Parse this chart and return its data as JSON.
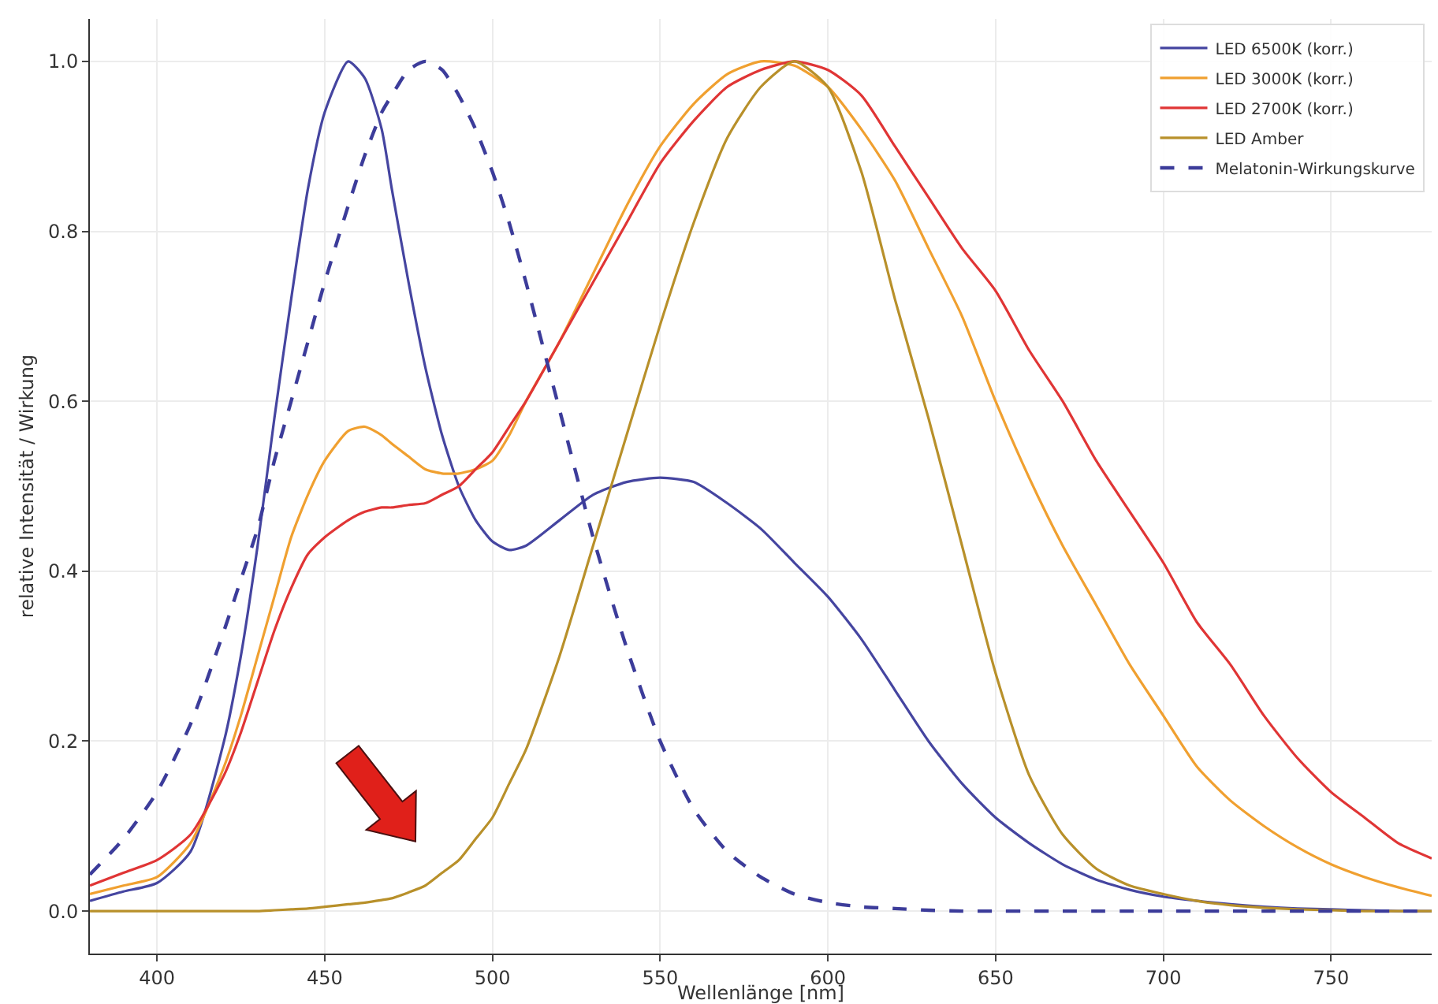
{
  "chart_data": {
    "type": "line",
    "xlabel": "Wellenlänge [nm]",
    "ylabel": "relative Intensität / Wirkung",
    "xlim": [
      380,
      780
    ],
    "ylim": [
      -0.05,
      1.05
    ],
    "xticks": [
      400,
      450,
      500,
      550,
      600,
      650,
      700,
      750
    ],
    "yticks": [
      {
        "value": 0,
        "label": "0.0"
      },
      {
        "value": 0.2,
        "label": "0.2"
      },
      {
        "value": 0.4,
        "label": "0.4"
      },
      {
        "value": 0.6,
        "label": "0.6"
      },
      {
        "value": 0.8,
        "label": "0.8"
      },
      {
        "value": 1,
        "label": "1.0"
      }
    ],
    "grid": true,
    "legend": "top right",
    "marker": "none",
    "x": [
      380,
      390,
      400,
      410,
      420,
      425,
      430,
      435,
      440,
      445,
      450,
      457,
      462,
      467,
      470,
      475,
      480,
      485,
      490,
      495,
      500,
      505,
      510,
      520,
      530,
      540,
      550,
      560,
      570,
      580,
      590,
      600,
      610,
      620,
      630,
      640,
      650,
      660,
      670,
      680,
      690,
      700,
      710,
      720,
      730,
      740,
      750,
      760,
      770,
      780
    ],
    "series": [
      {
        "name": "LED 6500K (korr.)",
        "color": "#4545a0",
        "line_style": "solid",
        "values": [
          0.012,
          0.023,
          0.033,
          0.07,
          0.2,
          0.3,
          0.43,
          0.58,
          0.72,
          0.85,
          0.94,
          1.0,
          0.98,
          0.92,
          0.85,
          0.74,
          0.64,
          0.56,
          0.5,
          0.46,
          0.435,
          0.425,
          0.43,
          0.46,
          0.49,
          0.505,
          0.51,
          0.505,
          0.48,
          0.45,
          0.41,
          0.37,
          0.32,
          0.26,
          0.2,
          0.15,
          0.11,
          0.08,
          0.055,
          0.037,
          0.025,
          0.017,
          0.012,
          0.008,
          0.005,
          0.003,
          0.002,
          0.001,
          0,
          0
        ]
      },
      {
        "name": "LED 3000K (korr.)",
        "color": "#f0a030",
        "line_style": "solid",
        "values": [
          0.02,
          0.03,
          0.04,
          0.08,
          0.17,
          0.23,
          0.3,
          0.37,
          0.44,
          0.49,
          0.53,
          0.565,
          0.57,
          0.56,
          0.55,
          0.535,
          0.52,
          0.515,
          0.515,
          0.52,
          0.53,
          0.56,
          0.6,
          0.67,
          0.75,
          0.83,
          0.9,
          0.95,
          0.985,
          1.0,
          0.995,
          0.97,
          0.92,
          0.86,
          0.78,
          0.7,
          0.6,
          0.51,
          0.43,
          0.36,
          0.29,
          0.23,
          0.17,
          0.13,
          0.1,
          0.075,
          0.055,
          0.04,
          0.028,
          0.018
        ]
      },
      {
        "name": "LED 2700K (korr.)",
        "color": "#e03535",
        "line_style": "solid",
        "values": [
          0.03,
          0.045,
          0.06,
          0.09,
          0.16,
          0.21,
          0.27,
          0.33,
          0.38,
          0.42,
          0.44,
          0.46,
          0.47,
          0.475,
          0.475,
          0.478,
          0.48,
          0.49,
          0.5,
          0.52,
          0.54,
          0.57,
          0.6,
          0.67,
          0.74,
          0.81,
          0.88,
          0.93,
          0.97,
          0.99,
          1.0,
          0.99,
          0.96,
          0.9,
          0.84,
          0.78,
          0.73,
          0.66,
          0.6,
          0.53,
          0.47,
          0.41,
          0.34,
          0.29,
          0.23,
          0.18,
          0.14,
          0.11,
          0.08,
          0.062
        ]
      },
      {
        "name": "LED Amber",
        "color": "#b8902a",
        "line_style": "solid",
        "values": [
          0,
          0,
          0,
          0,
          0,
          0,
          0,
          0.001,
          0.002,
          0.003,
          0.005,
          0.008,
          0.01,
          0.013,
          0.015,
          0.022,
          0.03,
          0.045,
          0.06,
          0.085,
          0.11,
          0.15,
          0.19,
          0.3,
          0.43,
          0.56,
          0.69,
          0.81,
          0.91,
          0.97,
          1.0,
          0.97,
          0.87,
          0.72,
          0.58,
          0.43,
          0.28,
          0.16,
          0.09,
          0.05,
          0.03,
          0.02,
          0.012,
          0.007,
          0.004,
          0.002,
          0.001,
          0,
          0,
          0
        ]
      },
      {
        "name": "Melatonin-Wirkungskurve",
        "color": "#3c3c9a",
        "line_style": "dashed",
        "values": [
          0.043,
          0.085,
          0.14,
          0.22,
          0.33,
          0.39,
          0.45,
          0.53,
          0.6,
          0.67,
          0.74,
          0.83,
          0.89,
          0.94,
          0.96,
          0.99,
          1.0,
          0.99,
          0.96,
          0.92,
          0.87,
          0.81,
          0.74,
          0.59,
          0.44,
          0.31,
          0.2,
          0.12,
          0.07,
          0.04,
          0.02,
          0.01,
          0.005,
          0.003,
          0.001,
          0,
          0,
          0,
          0,
          0,
          0,
          0,
          0,
          0,
          0,
          0,
          0,
          0,
          0,
          0
        ]
      }
    ]
  }
}
